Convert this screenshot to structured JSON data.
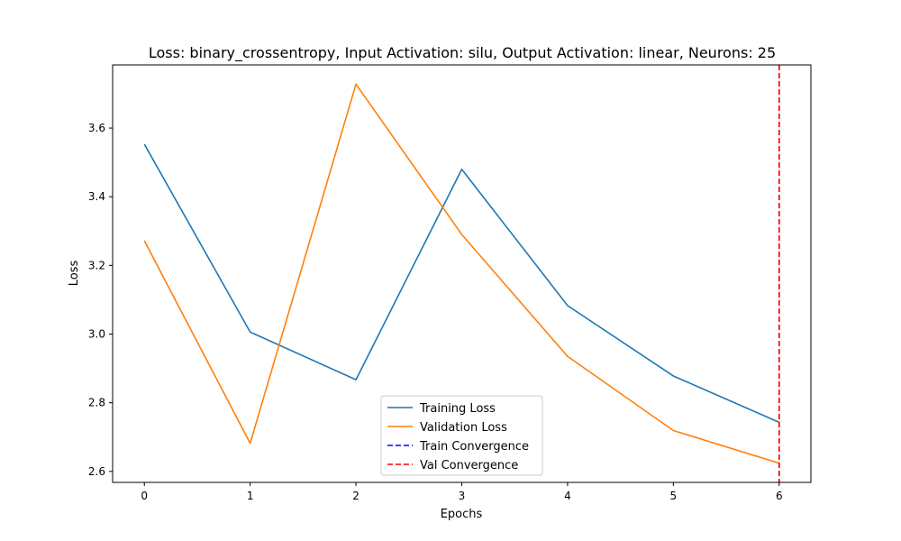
{
  "chart_data": {
    "type": "line",
    "title": "Loss: binary_crossentropy, Input Activation: silu, Output Activation: linear, Neurons: 25",
    "xlabel": "Epochs",
    "ylabel": "Loss",
    "x": [
      0,
      1,
      2,
      3,
      4,
      5,
      6
    ],
    "xticks": [
      "0",
      "1",
      "2",
      "3",
      "4",
      "5",
      "6"
    ],
    "yticks": [
      "2.6",
      "2.8",
      "3.0",
      "3.2",
      "3.4",
      "3.6"
    ],
    "ytick_values": [
      2.6,
      2.8,
      3.0,
      3.2,
      3.4,
      3.6
    ],
    "xlim": [
      -0.3,
      6.3
    ],
    "ylim": [
      2.568,
      3.784
    ],
    "grid": false,
    "legend_position": "lower-center",
    "series": [
      {
        "name": "Training Loss",
        "values": [
          3.553,
          3.006,
          2.867,
          3.48,
          3.083,
          2.878,
          2.743
        ],
        "color": "#1f77b4",
        "style": "solid"
      },
      {
        "name": "Validation Loss",
        "values": [
          3.272,
          2.682,
          3.728,
          3.29,
          2.935,
          2.719,
          2.624
        ],
        "color": "#ff7f0e",
        "style": "solid"
      }
    ],
    "vlines": [
      {
        "name": "Train Convergence",
        "x": 6,
        "color": "#0000ff",
        "style": "dashed"
      },
      {
        "name": "Val Convergence",
        "x": 6,
        "color": "#ff0000",
        "style": "dashed"
      }
    ]
  }
}
